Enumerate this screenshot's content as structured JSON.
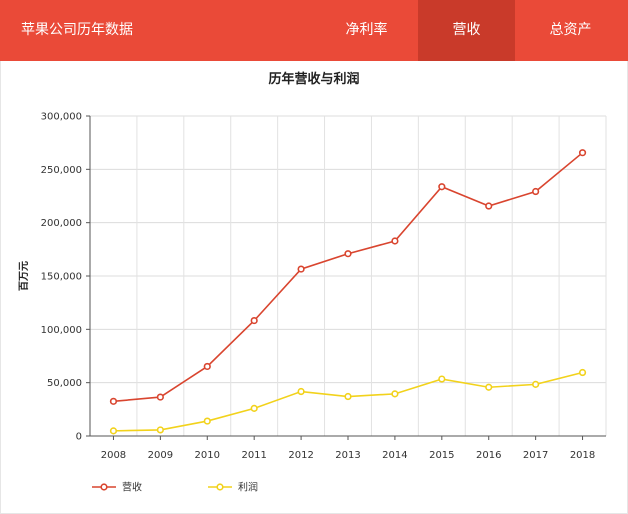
{
  "header": {
    "title": "苹果公司历年数据",
    "tabs": [
      {
        "label": "净利率",
        "active": false
      },
      {
        "label": "营收",
        "active": true
      },
      {
        "label": "总资产",
        "active": false
      }
    ]
  },
  "colors": {
    "header_bg": "#ea4a38",
    "active_tab_bg": "#c93a2a",
    "revenue": "#d9452f",
    "profit": "#f2d21b"
  },
  "chart_data": {
    "type": "line",
    "title": "历年营收与利润",
    "xlabel": "",
    "ylabel": "百万元",
    "x": [
      "2008",
      "2009",
      "2010",
      "2011",
      "2012",
      "2013",
      "2014",
      "2015",
      "2016",
      "2017",
      "2018"
    ],
    "ylim": [
      0,
      300000
    ],
    "yticks": [
      0,
      50000,
      100000,
      150000,
      200000,
      250000,
      300000
    ],
    "ytick_labels": [
      "0",
      "50,000",
      "100,000",
      "150,000",
      "200,000",
      "250,000",
      "300,000"
    ],
    "grid": true,
    "legend_position": "bottom-left",
    "series": [
      {
        "name": "营收",
        "color": "#d9452f",
        "values": [
          32500,
          36500,
          65200,
          108200,
          156500,
          170900,
          182800,
          233700,
          215600,
          229200,
          265600
        ]
      },
      {
        "name": "利润",
        "color": "#f2d21b",
        "values": [
          4800,
          5700,
          14000,
          25900,
          41700,
          37000,
          39500,
          53400,
          45700,
          48400,
          59500
        ]
      }
    ]
  }
}
